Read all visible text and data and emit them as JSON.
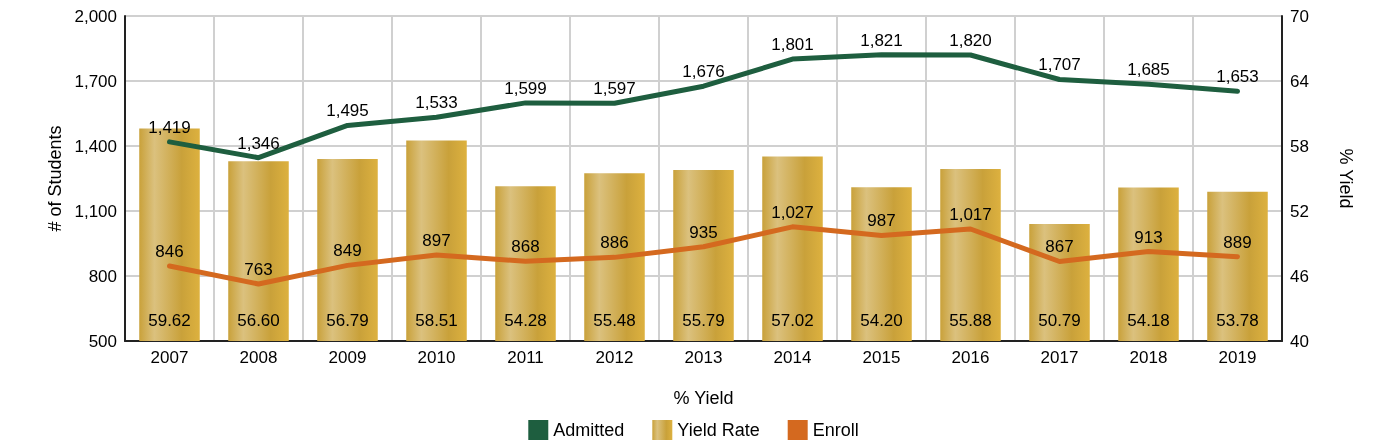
{
  "chart_data": {
    "type": "bar",
    "xlabel": "% Yield",
    "ylabel": "# of Students",
    "y2label": "% Yield",
    "categories": [
      "2007",
      "2008",
      "2009",
      "2010",
      "2011",
      "2012",
      "2013",
      "2014",
      "2015",
      "2016",
      "2017",
      "2018",
      "2019"
    ],
    "series": [
      {
        "name": "Admitted",
        "type": "line",
        "color": "#1e5e3f",
        "values": [
          1419,
          1346,
          1495,
          1533,
          1599,
          1597,
          1676,
          1801,
          1821,
          1820,
          1707,
          1685,
          1653
        ],
        "value_labels": [
          "1,419",
          "1,346",
          "1,495",
          "1,533",
          "1,599",
          "1,597",
          "1,676",
          "1,801",
          "1,821",
          "1,820",
          "1,707",
          "1,685",
          "1,653"
        ]
      },
      {
        "name": "Yield Rate",
        "axis": "y2",
        "color": "#c9a13a",
        "values": [
          59.62,
          56.6,
          56.79,
          58.51,
          54.28,
          55.48,
          55.79,
          57.02,
          54.2,
          55.88,
          50.79,
          54.18,
          53.78
        ],
        "value_labels": [
          "59.62",
          "56.60",
          "56.79",
          "58.51",
          "54.28",
          "55.48",
          "55.79",
          "57.02",
          "54.20",
          "55.88",
          "50.79",
          "54.18",
          "53.78"
        ]
      },
      {
        "name": "Enroll",
        "type": "line",
        "color": "#d4691f",
        "values": [
          846,
          763,
          849,
          897,
          868,
          886,
          935,
          1027,
          987,
          1017,
          867,
          913,
          889
        ],
        "value_labels": [
          "846",
          "763",
          "849",
          "897",
          "868",
          "886",
          "935",
          "1,027",
          "987",
          "1,017",
          "867",
          "913",
          "889"
        ]
      }
    ],
    "ylim": [
      500,
      2000
    ],
    "yticks": [
      500,
      800,
      {
        "value": 1100,
        "label": "1,100"
      },
      {
        "value": 1400,
        "label": "1,400"
      },
      {
        "value": 1700,
        "label": "1,700"
      },
      {
        "value": 2000,
        "label": "2,000"
      }
    ],
    "y2lim": [
      40,
      70
    ],
    "y2ticks": [
      40,
      46,
      52,
      58,
      64,
      70
    ],
    "grid": true,
    "legend": "bottom",
    "marker": "none",
    "line_style": "solid"
  }
}
